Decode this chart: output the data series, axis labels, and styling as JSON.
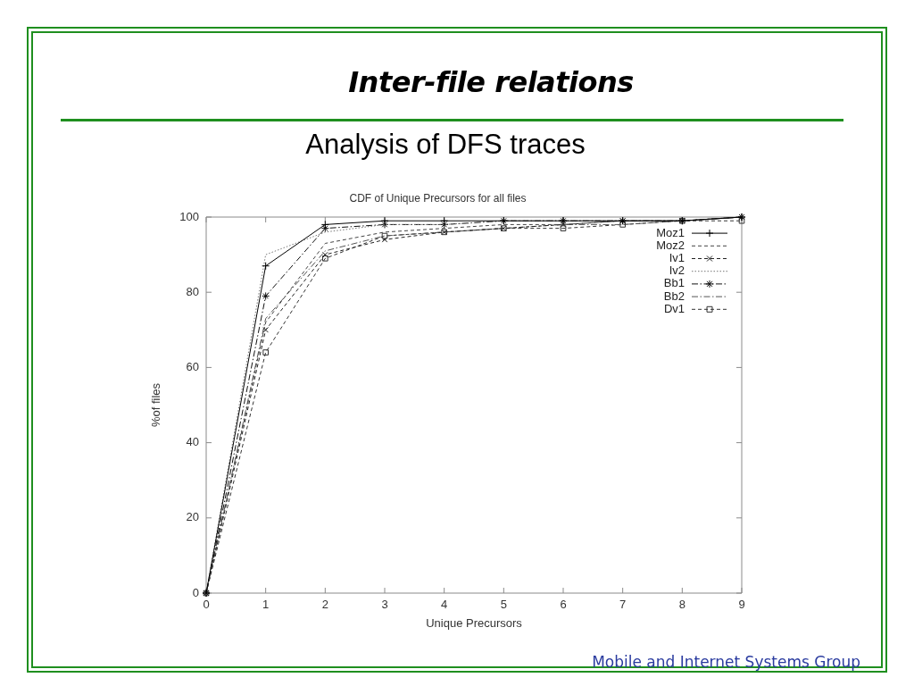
{
  "chart_data": {
    "type": "line",
    "title": "Inter-file relations",
    "subtitle": "Analysis of DFS traces",
    "xlabel": "Unique Precursors",
    "ylabel": "%of files",
    "annotations": [
      "CDF of Unique Precursors for all files",
      "Mobile and Internet Systems Group"
    ],
    "x": [
      0,
      1,
      2,
      3,
      4,
      5,
      6,
      7,
      8,
      9
    ],
    "series": [
      {
        "name": "Moz1",
        "color": "#000000",
        "marker": "plus",
        "line_style": "solid",
        "values": [
          0,
          87,
          98,
          99,
          99,
          99,
          99,
          99,
          99,
          100
        ]
      },
      {
        "name": "Moz2",
        "color": "#444444",
        "marker": "none",
        "line_style": "dashed",
        "values": [
          0,
          72,
          93,
          96,
          97,
          98,
          98,
          99,
          99,
          100
        ]
      },
      {
        "name": "Iv1",
        "color": "#222222",
        "marker": "x",
        "line_style": "dashed",
        "values": [
          0,
          70,
          90,
          94,
          96,
          97,
          98,
          99,
          99,
          100
        ]
      },
      {
        "name": "Iv2",
        "color": "#777777",
        "marker": "none",
        "line_style": "dotted",
        "values": [
          0,
          90,
          96,
          98,
          98,
          99,
          99,
          99,
          99,
          100
        ]
      },
      {
        "name": "Bb1",
        "color": "#111111",
        "marker": "cross",
        "line_style": "dashdot",
        "values": [
          0,
          79,
          97,
          98,
          98,
          99,
          99,
          99,
          99,
          100
        ]
      },
      {
        "name": "Bb2",
        "color": "#555555",
        "marker": "none",
        "line_style": "dashdot",
        "values": [
          0,
          73,
          91,
          95,
          96,
          97,
          98,
          98,
          99,
          100
        ]
      },
      {
        "name": "Dv1",
        "color": "#333333",
        "marker": "square",
        "line_style": "dashed",
        "values": [
          0,
          64,
          89,
          95,
          96,
          97,
          97,
          98,
          99,
          99
        ]
      }
    ],
    "xlim": [
      0,
      9
    ],
    "xticks": [
      0,
      1,
      2,
      3,
      4,
      5,
      6,
      7,
      8,
      9
    ],
    "ylim": [
      0,
      100
    ],
    "yticks": [
      0,
      20,
      40,
      60,
      80,
      100
    ],
    "legend": "top right"
  }
}
